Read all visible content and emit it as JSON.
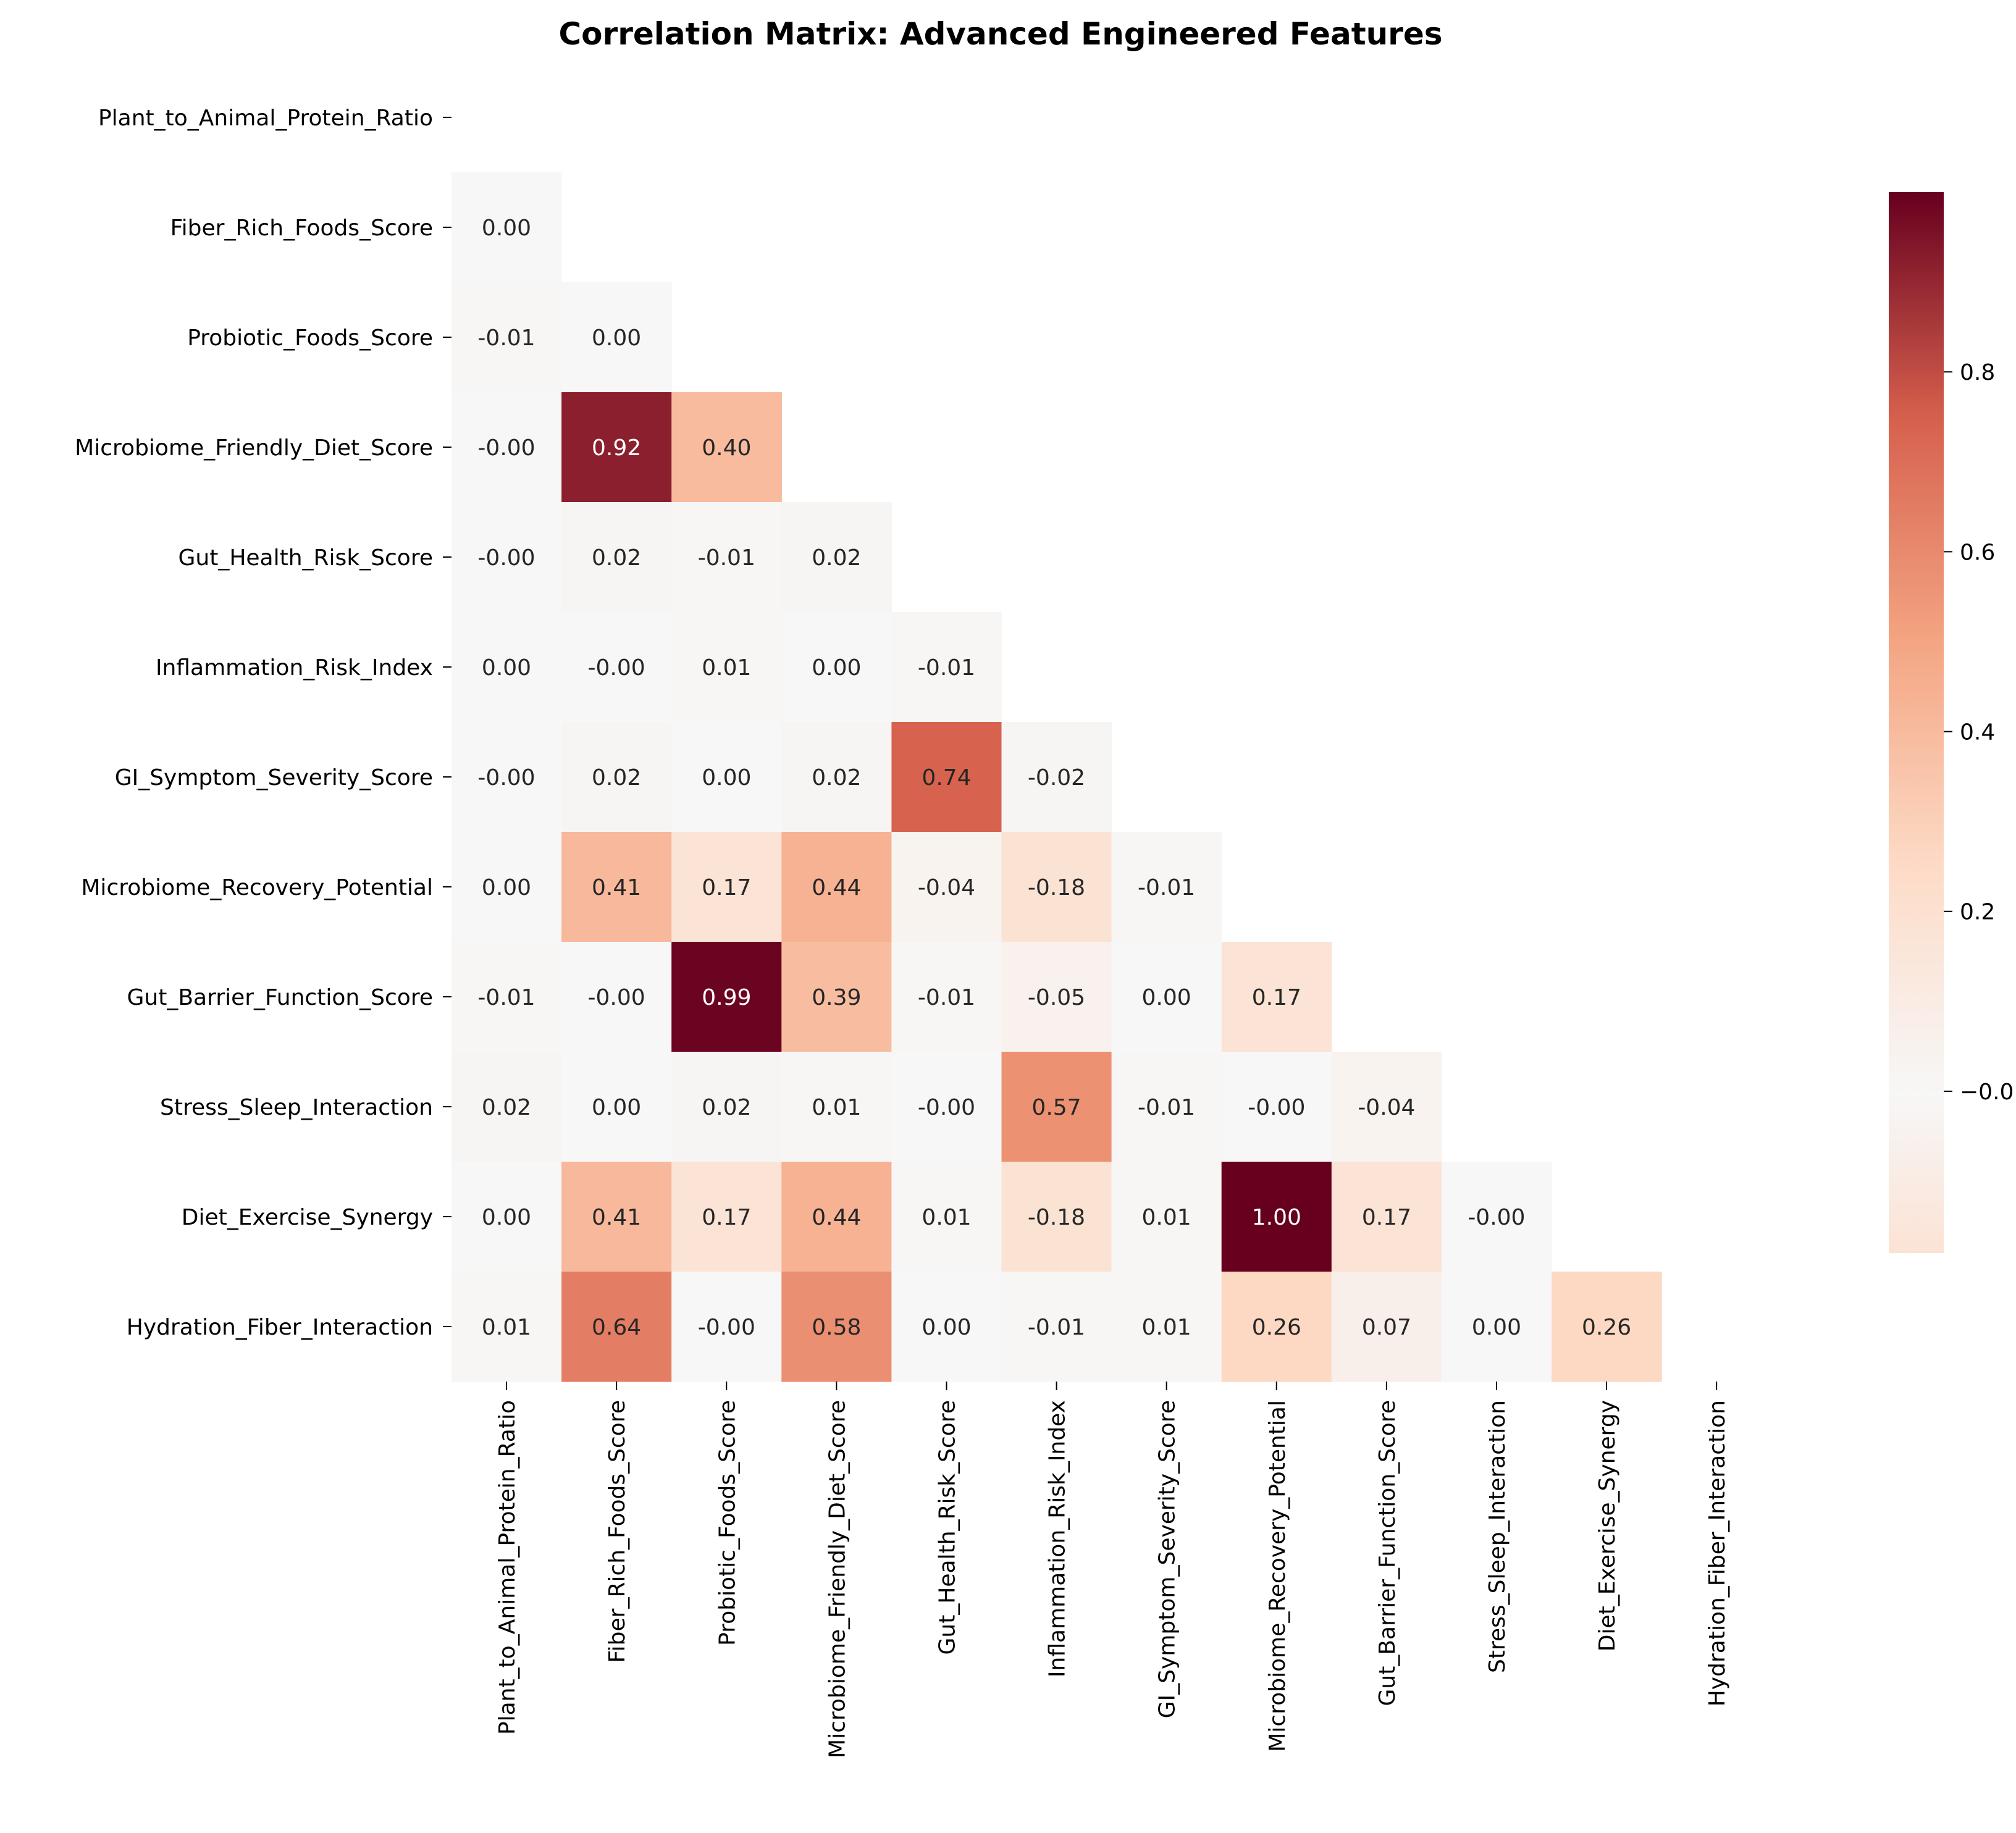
{
  "chart_data": {
    "type": "heatmap",
    "title": "Correlation Matrix: Advanced Engineered Features",
    "colormap": "RdBu_r",
    "center": 0.0,
    "vmin": -0.18,
    "vmax": 1.0,
    "mask": "upper-triangle-and-diagonal",
    "annotation_format": "0.00",
    "labels": [
      "Plant_to_Animal_Protein_Ratio",
      "Fiber_Rich_Foods_Score",
      "Probiotic_Foods_Score",
      "Microbiome_Friendly_Diet_Score",
      "Gut_Health_Risk_Score",
      "Inflammation_Risk_Index",
      "GI_Symptom_Severity_Score",
      "Microbiome_Recovery_Potential",
      "Gut_Barrier_Function_Score",
      "Stress_Sleep_Interaction",
      "Diet_Exercise_Synergy",
      "Hydration_Fiber_Interaction"
    ],
    "lower_triangle": [
      [],
      [
        0.0
      ],
      [
        -0.01,
        0.0
      ],
      [
        -0.0,
        0.92,
        0.4
      ],
      [
        -0.0,
        0.02,
        -0.01,
        0.02
      ],
      [
        0.0,
        -0.0,
        0.01,
        0.0,
        -0.01
      ],
      [
        -0.0,
        0.02,
        0.0,
        0.02,
        0.74,
        -0.02
      ],
      [
        0.0,
        0.41,
        0.17,
        0.44,
        -0.04,
        -0.18,
        -0.01
      ],
      [
        -0.01,
        -0.0,
        0.99,
        0.39,
        -0.01,
        -0.05,
        0.0,
        0.17
      ],
      [
        0.02,
        0.0,
        0.02,
        0.01,
        -0.0,
        0.57,
        -0.01,
        -0.0,
        -0.04
      ],
      [
        0.0,
        0.41,
        0.17,
        0.44,
        0.01,
        -0.18,
        0.01,
        1.0,
        0.17,
        -0.0
      ],
      [
        0.01,
        0.64,
        -0.0,
        0.58,
        0.0,
        -0.01,
        0.01,
        0.26,
        0.07,
        0.0,
        0.26
      ]
    ],
    "colorbar": {
      "ticks": [
        0.0,
        0.2,
        0.4,
        0.6,
        0.8
      ],
      "tick_labels": [
        "−0.0",
        "0.2",
        "0.4",
        "0.6",
        "0.8"
      ]
    }
  }
}
